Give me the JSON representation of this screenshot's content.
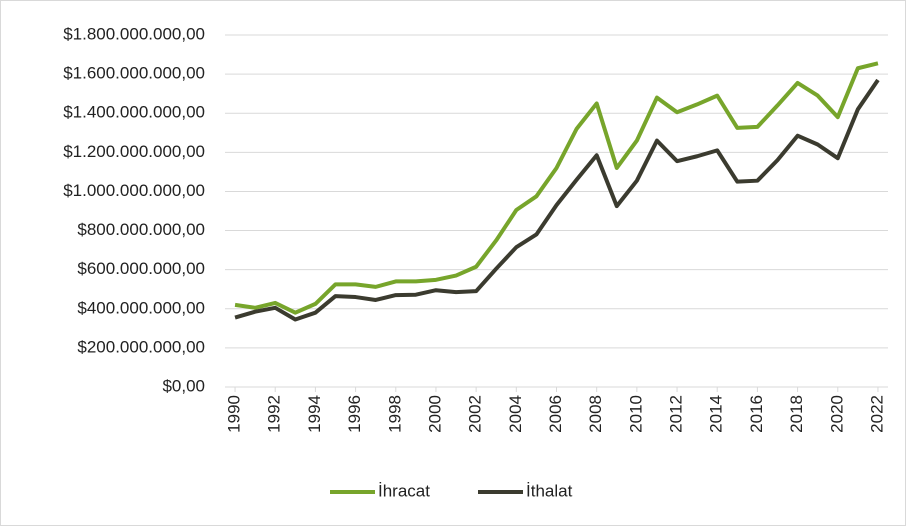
{
  "chart_data": {
    "type": "line",
    "x": [
      1990,
      1991,
      1992,
      1993,
      1994,
      1995,
      1996,
      1997,
      1998,
      1999,
      2000,
      2001,
      2002,
      2003,
      2004,
      2005,
      2006,
      2007,
      2008,
      2009,
      2010,
      2011,
      2012,
      2013,
      2014,
      2015,
      2016,
      2017,
      2018,
      2019,
      2020,
      2021,
      2022
    ],
    "series": [
      {
        "name": "İhracat",
        "color": "#77a52b",
        "values": [
          420000000,
          405000000,
          430000000,
          380000000,
          425000000,
          525000000,
          525000000,
          512000000,
          540000000,
          540000000,
          548000000,
          570000000,
          615000000,
          750000000,
          905000000,
          975000000,
          1120000000,
          1320000000,
          1450000000,
          1120000000,
          1260000000,
          1480000000,
          1405000000,
          1445000000,
          1490000000,
          1325000000,
          1330000000,
          1440000000,
          1555000000,
          1490000000,
          1380000000,
          1630000000,
          1655000000
        ]
      },
      {
        "name": "İthalat",
        "color": "#3b3b2f",
        "values": [
          355000000,
          385000000,
          405000000,
          345000000,
          380000000,
          465000000,
          460000000,
          445000000,
          470000000,
          472000000,
          495000000,
          485000000,
          490000000,
          605000000,
          715000000,
          780000000,
          930000000,
          1060000000,
          1185000000,
          925000000,
          1055000000,
          1260000000,
          1155000000,
          1180000000,
          1210000000,
          1050000000,
          1055000000,
          1160000000,
          1285000000,
          1240000000,
          1170000000,
          1420000000,
          1570000000
        ]
      }
    ],
    "xlim": [
      1989.5,
      2022.5
    ],
    "xticks": [
      1990,
      1992,
      1994,
      1996,
      1998,
      2000,
      2002,
      2004,
      2006,
      2008,
      2010,
      2012,
      2014,
      2016,
      2018,
      2020,
      2022
    ],
    "ylim": [
      0,
      1800000000
    ],
    "yticks": [
      {
        "value": 0,
        "label": "$0,00"
      },
      {
        "value": 200000000,
        "label": "$200.000.000,00"
      },
      {
        "value": 400000000,
        "label": "$400.000.000,00"
      },
      {
        "value": 600000000,
        "label": "$600.000.000,00"
      },
      {
        "value": 800000000,
        "label": "$800.000.000,00"
      },
      {
        "value": 1000000000,
        "label": "$1.000.000.000,00"
      },
      {
        "value": 1200000000,
        "label": "$1.200.000.000,00"
      },
      {
        "value": 1400000000,
        "label": "$1.400.000.000,00"
      },
      {
        "value": 1600000000,
        "label": "$1.600.000.000,00"
      },
      {
        "value": 1800000000,
        "label": "$1.800.000.000,00"
      }
    ],
    "grid": true,
    "legend": "bottom"
  }
}
